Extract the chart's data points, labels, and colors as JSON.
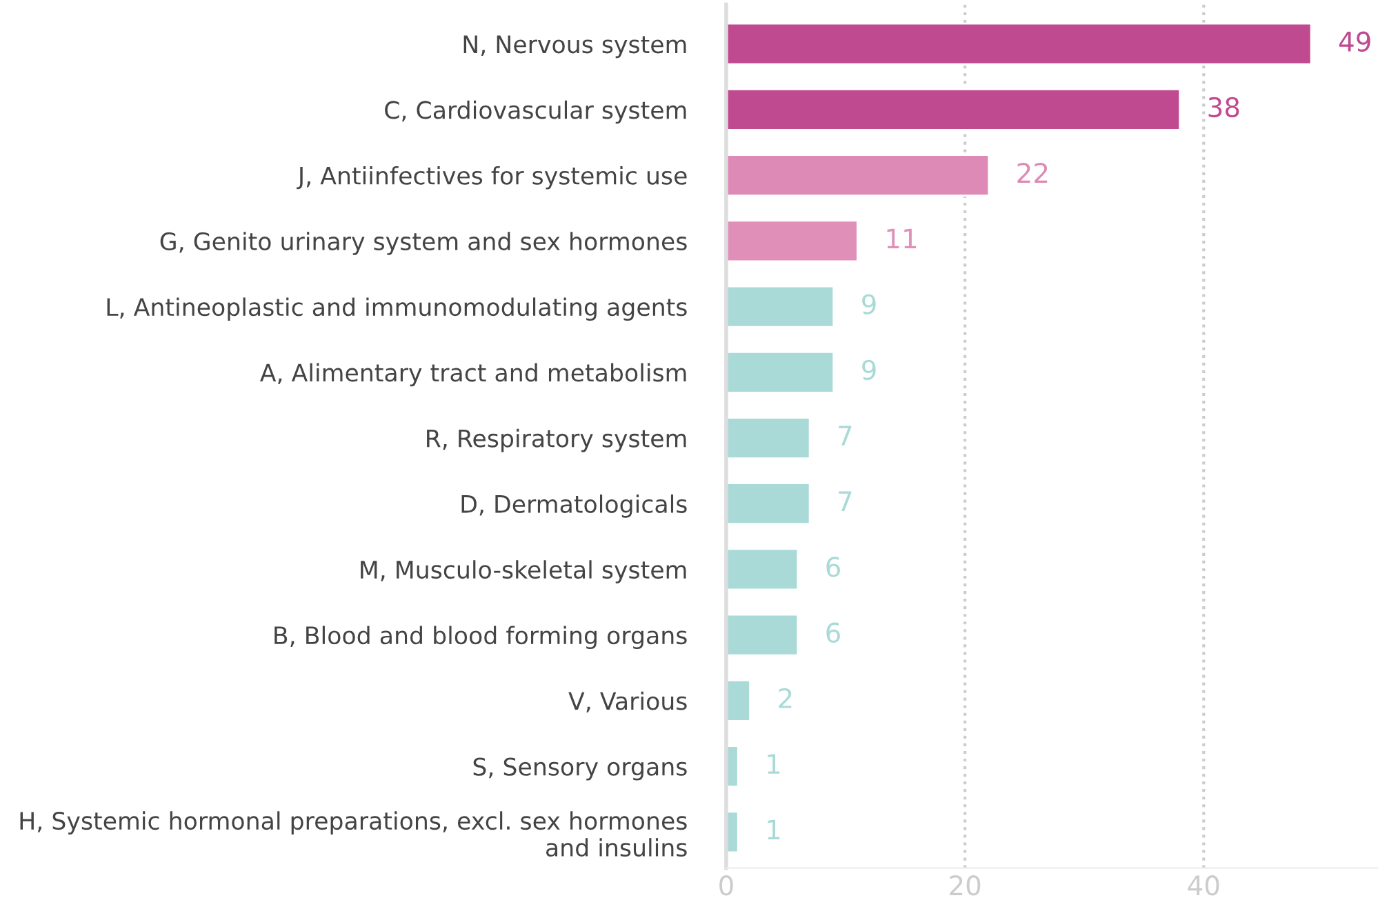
{
  "chart_data": {
    "type": "bar",
    "orientation": "horizontal",
    "categories": [
      "N, Nervous system",
      "C, Cardiovascular system",
      "J, Antiinfectives for systemic use",
      "G, Genito urinary system and sex hormones",
      "L, Antineoplastic and immunomodulating agents",
      "A, Alimentary tract and metabolism",
      "R, Respiratory system",
      "D, Dermatologicals",
      "M, Musculo-skeletal system",
      "B, Blood and blood forming organs",
      "V, Various",
      "S, Sensory organs",
      "H, Systemic hormonal preparations, excl. sex hormones\nand insulins"
    ],
    "values": [
      49,
      38,
      22,
      11,
      9,
      9,
      7,
      7,
      6,
      6,
      2,
      1,
      1
    ],
    "colors": [
      "#c04a90",
      "#c04a90",
      "#de8ab6",
      "#e08fb9",
      "#a9dad7",
      "#a9dad7",
      "#a9dad7",
      "#a9dad7",
      "#a9dad7",
      "#a9dad7",
      "#a9dad7",
      "#a9dad7",
      "#a9dad7"
    ],
    "data_labels": true,
    "xlim": [
      0,
      54.6
    ],
    "xticks": [
      0,
      20,
      40
    ],
    "grid": "x"
  }
}
